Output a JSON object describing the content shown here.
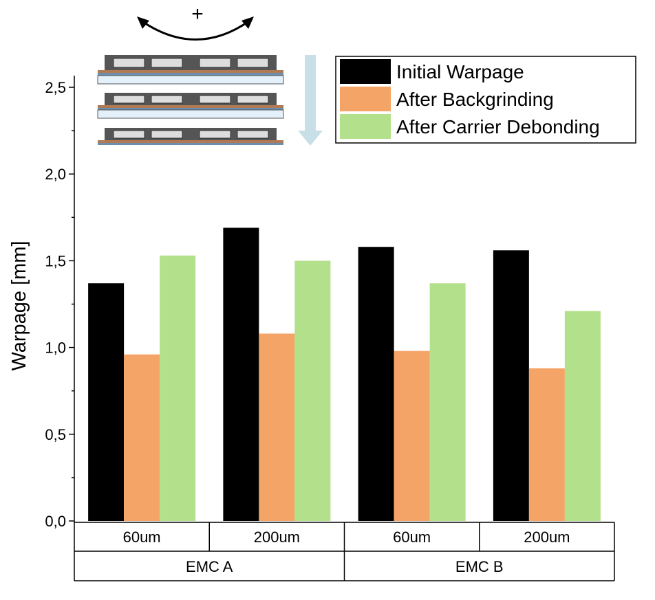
{
  "chart_data": {
    "type": "bar",
    "ylabel": "Warpage [mm]",
    "ylim": [
      0,
      2.5
    ],
    "yticks": [
      "0,0",
      "0,5",
      "1,0",
      "1,5",
      "2,0",
      "2,5"
    ],
    "ytick_values": [
      0,
      0.5,
      1.0,
      1.5,
      2.0,
      2.5
    ],
    "categories": [
      "60um",
      "200um",
      "60um",
      "200um"
    ],
    "groups": [
      {
        "label": "EMC A",
        "span": 2
      },
      {
        "label": "EMC B",
        "span": 2
      }
    ],
    "series": [
      {
        "name": "Initial Warpage",
        "color": "#000000",
        "values": [
          1.37,
          1.69,
          1.58,
          1.56
        ]
      },
      {
        "name": "After Backgrinding",
        "color": "#f4a466",
        "values": [
          0.96,
          1.08,
          0.98,
          0.88
        ]
      },
      {
        "name": "After Carrier Debonding",
        "color": "#b3e08a",
        "values": [
          1.53,
          1.5,
          1.37,
          1.21
        ]
      }
    ],
    "legend_position": "top-right",
    "grid": false
  },
  "inset": {
    "rotation_sign": "+",
    "arrow_color": "#c9dfe8"
  }
}
